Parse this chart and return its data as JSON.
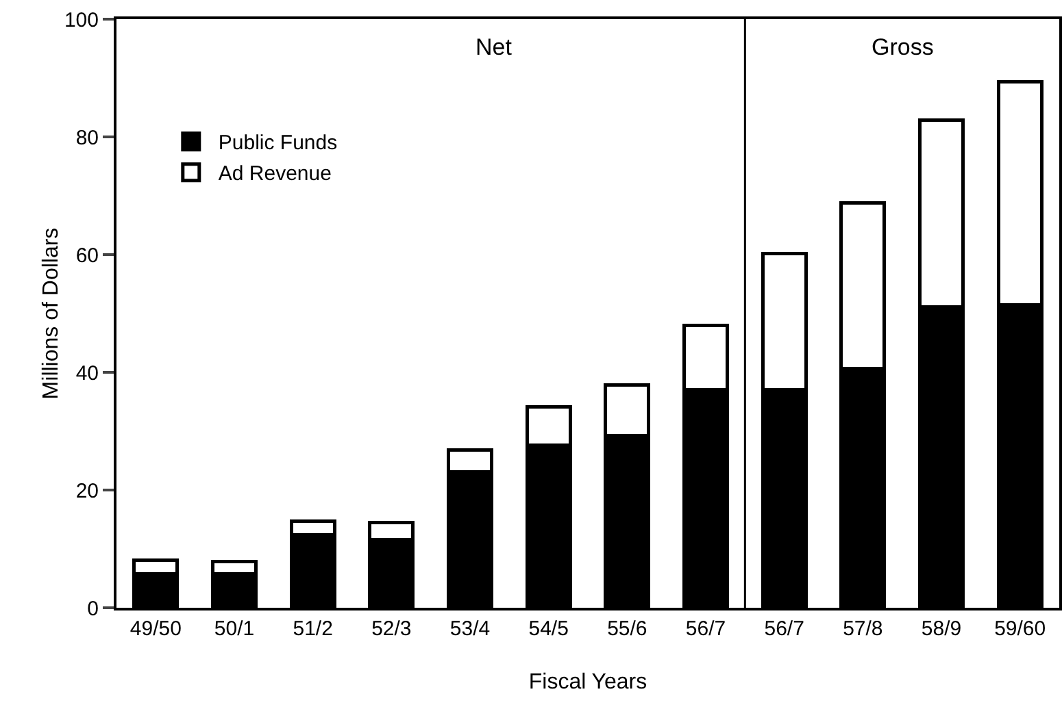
{
  "chart_data": {
    "type": "bar",
    "stacked": true,
    "categories": [
      "49/50",
      "50/1",
      "51/2",
      "52/3",
      "53/4",
      "54/5",
      "55/6",
      "56/7",
      "56/7",
      "57/8",
      "58/9",
      "59/60"
    ],
    "series": [
      {
        "name": "Public Funds",
        "color": "#000000",
        "values": [
          5.8,
          5.8,
          12.4,
          11.6,
          23.1,
          27.6,
          29.3,
          37.0,
          37.0,
          40.6,
          51.1,
          51.5
        ]
      },
      {
        "name": "Ad Revenue",
        "color": "#ffffff",
        "values": [
          2.3,
          2.1,
          2.3,
          2.9,
          3.7,
          6.5,
          8.5,
          11.0,
          23.2,
          28.2,
          31.8,
          37.9
        ]
      }
    ],
    "xlabel": "Fiscal Years",
    "ylabel": "Millions of Dollars",
    "ylim": [
      0,
      100
    ],
    "yticks": [
      0,
      20,
      40,
      60,
      80,
      100
    ],
    "annotations": [
      "Net",
      "Gross"
    ],
    "grid": false,
    "legend": "top left"
  }
}
